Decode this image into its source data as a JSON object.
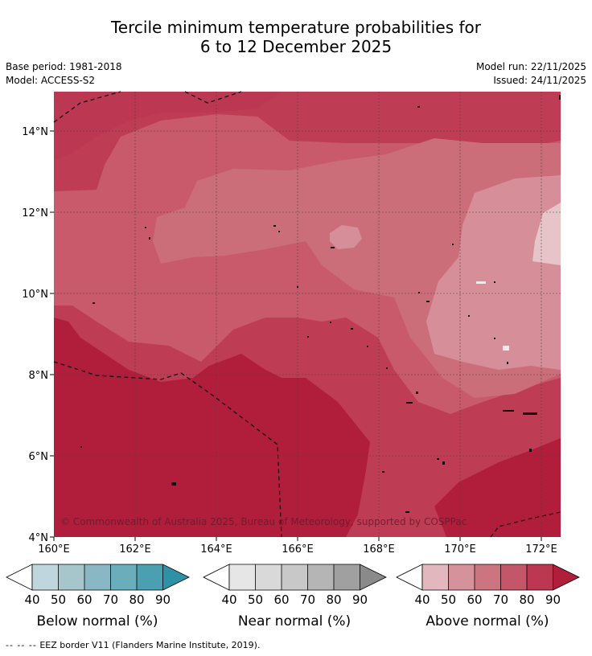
{
  "title_line1": "Tercile minimum temperature probabilities for",
  "title_line2": "6 to 12 December 2025",
  "base_period": "Base period: 1981-2018",
  "model": "Model: ACCESS-S2",
  "model_run": "Model run: 22/11/2025",
  "issued": "Issued: 24/11/2025",
  "copyright": "© Commonwealth of Australia 2025, Bureau of Meteorology, supported by COSPPac",
  "map": {
    "lat_ticks": [
      "14°N",
      "12°N",
      "10°N",
      "8°N",
      "6°N",
      "4°N"
    ],
    "lon_ticks": [
      "160°E",
      "162°E",
      "164°E",
      "166°E",
      "168°E",
      "170°E",
      "172°E"
    ],
    "lat_range": [
      4,
      15
    ],
    "lon_range": [
      160,
      172.5
    ]
  },
  "legends": [
    {
      "label": "Below normal (%)",
      "ticks": [
        "40",
        "50",
        "60",
        "70",
        "80",
        "90"
      ],
      "colors": [
        "#c0d6dd",
        "#a6c6cc",
        "#89b7c3",
        "#6aadbb",
        "#4a9fb0",
        "#2f91a6"
      ]
    },
    {
      "label": "Near normal (%)",
      "ticks": [
        "40",
        "50",
        "60",
        "70",
        "80",
        "90"
      ],
      "colors": [
        "#e6e6e6",
        "#d9d9d9",
        "#c8c8c8",
        "#b5b5b5",
        "#a0a0a0",
        "#8a8a8a"
      ]
    },
    {
      "label": "Above normal (%)",
      "ticks": [
        "40",
        "50",
        "60",
        "70",
        "80",
        "90"
      ],
      "colors": [
        "#e2b8be",
        "#d6929b",
        "#cc7480",
        "#c4566a",
        "#bb3752",
        "#b01e3c"
      ]
    }
  ],
  "footnote": "EEZ border V11 (Flanders Marine Institute, 2019).",
  "footnote_dash": "--  --  --"
}
